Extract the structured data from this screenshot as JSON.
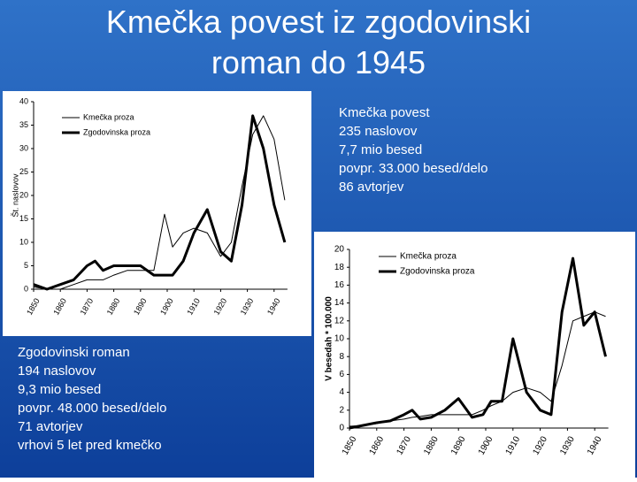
{
  "title": "Kmečka povest iz zgodovinski roman do 1945",
  "right_text": [
    "Kmečka povest",
    "235 naslovov",
    "7,7 mio besed",
    "povpr. 33.000 besed/delo",
    "86 avtorjev"
  ],
  "left_text": [
    "Zgodovinski roman",
    "194 naslovov",
    "9,3 mio besed",
    "povpr. 48.000 besed/delo",
    "71 avtorjev",
    "vrhovi 5 let pred kmečko"
  ],
  "chart_data": [
    {
      "type": "line",
      "y_label": "Št. naslovov",
      "x": [
        1850,
        1855,
        1860,
        1865,
        1870,
        1873,
        1876,
        1880,
        1885,
        1890,
        1895,
        1899,
        1902,
        1906,
        1910,
        1915,
        1920,
        1924,
        1928,
        1932,
        1936,
        1940,
        1944
      ],
      "series": [
        {
          "name": "Kmečka proza",
          "color": "#000000",
          "width": 1,
          "values": [
            0.5,
            0,
            0,
            1,
            2,
            2,
            2,
            3,
            4,
            4,
            4,
            16,
            9,
            12,
            13,
            12,
            7,
            10,
            22,
            33,
            37,
            32,
            19
          ]
        },
        {
          "name": "Zgodovinska proza",
          "color": "#000000",
          "width": 3,
          "values": [
            1,
            0,
            1,
            2,
            5,
            6,
            4,
            5,
            5,
            5,
            3,
            3,
            3,
            6,
            12,
            17,
            8,
            6,
            18,
            37,
            30,
            18,
            10
          ]
        }
      ],
      "xlim": [
        1850,
        1945
      ],
      "xticks": [
        1850,
        1860,
        1870,
        1880,
        1890,
        1900,
        1910,
        1920,
        1930,
        1940
      ],
      "ylim": [
        0,
        40
      ],
      "yticks": [
        0,
        5,
        10,
        15,
        20,
        25,
        30,
        35,
        40
      ]
    },
    {
      "type": "line",
      "y_label": "V besedah * 100.000",
      "x": [
        1850,
        1855,
        1860,
        1865,
        1870,
        1873,
        1876,
        1880,
        1885,
        1890,
        1895,
        1899,
        1902,
        1906,
        1910,
        1915,
        1920,
        1924,
        1928,
        1932,
        1936,
        1940,
        1944
      ],
      "series": [
        {
          "name": "Kmečka proza",
          "color": "#000000",
          "width": 1,
          "values": [
            0.2,
            0.3,
            0.5,
            0.8,
            1,
            1.2,
            1.3,
            1.5,
            1.5,
            1.5,
            1.5,
            2,
            2.5,
            3,
            4,
            4.5,
            4,
            3,
            7,
            12,
            12.5,
            13,
            12.5
          ]
        },
        {
          "name": "Zgodovinska proza",
          "color": "#000000",
          "width": 3,
          "values": [
            0,
            0.3,
            0.6,
            0.8,
            1.5,
            2,
            1,
            1.2,
            2,
            3.3,
            1.2,
            1.5,
            3,
            3,
            10,
            4,
            2,
            1.5,
            13,
            19,
            11.5,
            13,
            8
          ]
        }
      ],
      "xlim": [
        1850,
        1945
      ],
      "xticks": [
        1850,
        1860,
        1870,
        1880,
        1890,
        1900,
        1910,
        1920,
        1930,
        1940
      ],
      "ylim": [
        0,
        20
      ],
      "yticks": [
        0,
        2,
        4,
        6,
        8,
        10,
        12,
        14,
        16,
        18,
        20
      ]
    }
  ]
}
